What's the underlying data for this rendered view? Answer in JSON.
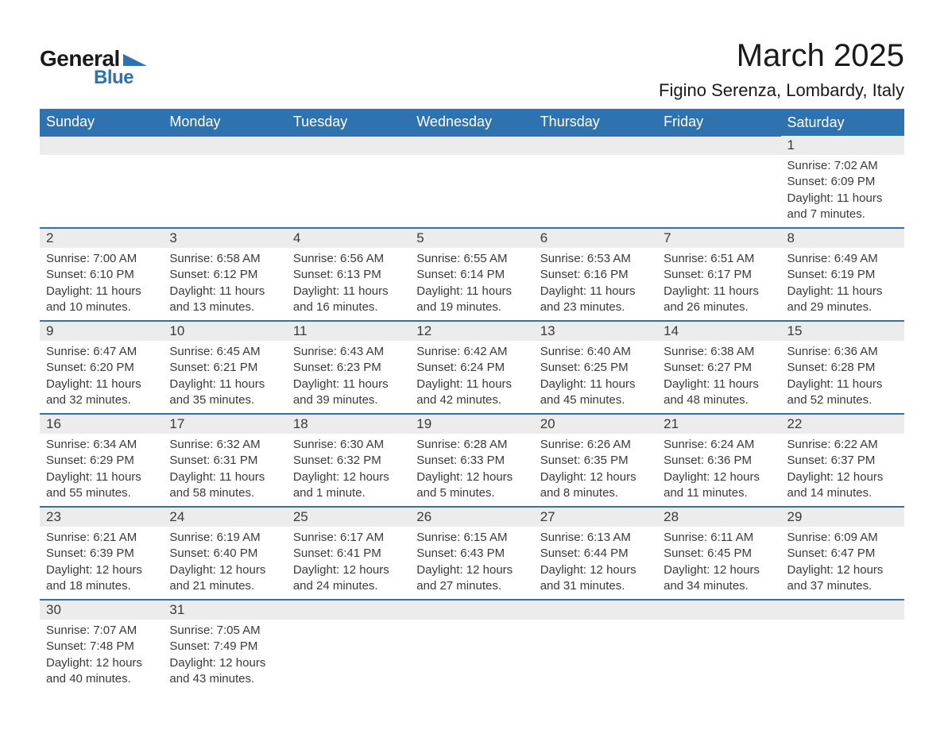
{
  "logo": {
    "text_general": "General",
    "text_blue": "Blue",
    "accent_color": "#2e72b0"
  },
  "title": "March 2025",
  "location": "Figino Serenza, Lombardy, Italy",
  "colors": {
    "header_bg": "#2e72b0",
    "header_text": "#ffffff",
    "daynum_bg": "#ececec",
    "row_divider": "#2e72b0",
    "body_text": "#3a3a3a",
    "page_bg": "#ffffff"
  },
  "typography": {
    "title_fontsize": 40,
    "location_fontsize": 22,
    "dayheader_fontsize": 18,
    "daynum_fontsize": 17,
    "detail_fontsize": 15,
    "font_family": "Arial"
  },
  "day_headers": [
    "Sunday",
    "Monday",
    "Tuesday",
    "Wednesday",
    "Thursday",
    "Friday",
    "Saturday"
  ],
  "weeks": [
    [
      null,
      null,
      null,
      null,
      null,
      null,
      {
        "n": "1",
        "sunrise": "Sunrise: 7:02 AM",
        "sunset": "Sunset: 6:09 PM",
        "daylight": "Daylight: 11 hours and 7 minutes."
      }
    ],
    [
      {
        "n": "2",
        "sunrise": "Sunrise: 7:00 AM",
        "sunset": "Sunset: 6:10 PM",
        "daylight": "Daylight: 11 hours and 10 minutes."
      },
      {
        "n": "3",
        "sunrise": "Sunrise: 6:58 AM",
        "sunset": "Sunset: 6:12 PM",
        "daylight": "Daylight: 11 hours and 13 minutes."
      },
      {
        "n": "4",
        "sunrise": "Sunrise: 6:56 AM",
        "sunset": "Sunset: 6:13 PM",
        "daylight": "Daylight: 11 hours and 16 minutes."
      },
      {
        "n": "5",
        "sunrise": "Sunrise: 6:55 AM",
        "sunset": "Sunset: 6:14 PM",
        "daylight": "Daylight: 11 hours and 19 minutes."
      },
      {
        "n": "6",
        "sunrise": "Sunrise: 6:53 AM",
        "sunset": "Sunset: 6:16 PM",
        "daylight": "Daylight: 11 hours and 23 minutes."
      },
      {
        "n": "7",
        "sunrise": "Sunrise: 6:51 AM",
        "sunset": "Sunset: 6:17 PM",
        "daylight": "Daylight: 11 hours and 26 minutes."
      },
      {
        "n": "8",
        "sunrise": "Sunrise: 6:49 AM",
        "sunset": "Sunset: 6:19 PM",
        "daylight": "Daylight: 11 hours and 29 minutes."
      }
    ],
    [
      {
        "n": "9",
        "sunrise": "Sunrise: 6:47 AM",
        "sunset": "Sunset: 6:20 PM",
        "daylight": "Daylight: 11 hours and 32 minutes."
      },
      {
        "n": "10",
        "sunrise": "Sunrise: 6:45 AM",
        "sunset": "Sunset: 6:21 PM",
        "daylight": "Daylight: 11 hours and 35 minutes."
      },
      {
        "n": "11",
        "sunrise": "Sunrise: 6:43 AM",
        "sunset": "Sunset: 6:23 PM",
        "daylight": "Daylight: 11 hours and 39 minutes."
      },
      {
        "n": "12",
        "sunrise": "Sunrise: 6:42 AM",
        "sunset": "Sunset: 6:24 PM",
        "daylight": "Daylight: 11 hours and 42 minutes."
      },
      {
        "n": "13",
        "sunrise": "Sunrise: 6:40 AM",
        "sunset": "Sunset: 6:25 PM",
        "daylight": "Daylight: 11 hours and 45 minutes."
      },
      {
        "n": "14",
        "sunrise": "Sunrise: 6:38 AM",
        "sunset": "Sunset: 6:27 PM",
        "daylight": "Daylight: 11 hours and 48 minutes."
      },
      {
        "n": "15",
        "sunrise": "Sunrise: 6:36 AM",
        "sunset": "Sunset: 6:28 PM",
        "daylight": "Daylight: 11 hours and 52 minutes."
      }
    ],
    [
      {
        "n": "16",
        "sunrise": "Sunrise: 6:34 AM",
        "sunset": "Sunset: 6:29 PM",
        "daylight": "Daylight: 11 hours and 55 minutes."
      },
      {
        "n": "17",
        "sunrise": "Sunrise: 6:32 AM",
        "sunset": "Sunset: 6:31 PM",
        "daylight": "Daylight: 11 hours and 58 minutes."
      },
      {
        "n": "18",
        "sunrise": "Sunrise: 6:30 AM",
        "sunset": "Sunset: 6:32 PM",
        "daylight": "Daylight: 12 hours and 1 minute."
      },
      {
        "n": "19",
        "sunrise": "Sunrise: 6:28 AM",
        "sunset": "Sunset: 6:33 PM",
        "daylight": "Daylight: 12 hours and 5 minutes."
      },
      {
        "n": "20",
        "sunrise": "Sunrise: 6:26 AM",
        "sunset": "Sunset: 6:35 PM",
        "daylight": "Daylight: 12 hours and 8 minutes."
      },
      {
        "n": "21",
        "sunrise": "Sunrise: 6:24 AM",
        "sunset": "Sunset: 6:36 PM",
        "daylight": "Daylight: 12 hours and 11 minutes."
      },
      {
        "n": "22",
        "sunrise": "Sunrise: 6:22 AM",
        "sunset": "Sunset: 6:37 PM",
        "daylight": "Daylight: 12 hours and 14 minutes."
      }
    ],
    [
      {
        "n": "23",
        "sunrise": "Sunrise: 6:21 AM",
        "sunset": "Sunset: 6:39 PM",
        "daylight": "Daylight: 12 hours and 18 minutes."
      },
      {
        "n": "24",
        "sunrise": "Sunrise: 6:19 AM",
        "sunset": "Sunset: 6:40 PM",
        "daylight": "Daylight: 12 hours and 21 minutes."
      },
      {
        "n": "25",
        "sunrise": "Sunrise: 6:17 AM",
        "sunset": "Sunset: 6:41 PM",
        "daylight": "Daylight: 12 hours and 24 minutes."
      },
      {
        "n": "26",
        "sunrise": "Sunrise: 6:15 AM",
        "sunset": "Sunset: 6:43 PM",
        "daylight": "Daylight: 12 hours and 27 minutes."
      },
      {
        "n": "27",
        "sunrise": "Sunrise: 6:13 AM",
        "sunset": "Sunset: 6:44 PM",
        "daylight": "Daylight: 12 hours and 31 minutes."
      },
      {
        "n": "28",
        "sunrise": "Sunrise: 6:11 AM",
        "sunset": "Sunset: 6:45 PM",
        "daylight": "Daylight: 12 hours and 34 minutes."
      },
      {
        "n": "29",
        "sunrise": "Sunrise: 6:09 AM",
        "sunset": "Sunset: 6:47 PM",
        "daylight": "Daylight: 12 hours and 37 minutes."
      }
    ],
    [
      {
        "n": "30",
        "sunrise": "Sunrise: 7:07 AM",
        "sunset": "Sunset: 7:48 PM",
        "daylight": "Daylight: 12 hours and 40 minutes."
      },
      {
        "n": "31",
        "sunrise": "Sunrise: 7:05 AM",
        "sunset": "Sunset: 7:49 PM",
        "daylight": "Daylight: 12 hours and 43 minutes."
      },
      null,
      null,
      null,
      null,
      null
    ]
  ]
}
